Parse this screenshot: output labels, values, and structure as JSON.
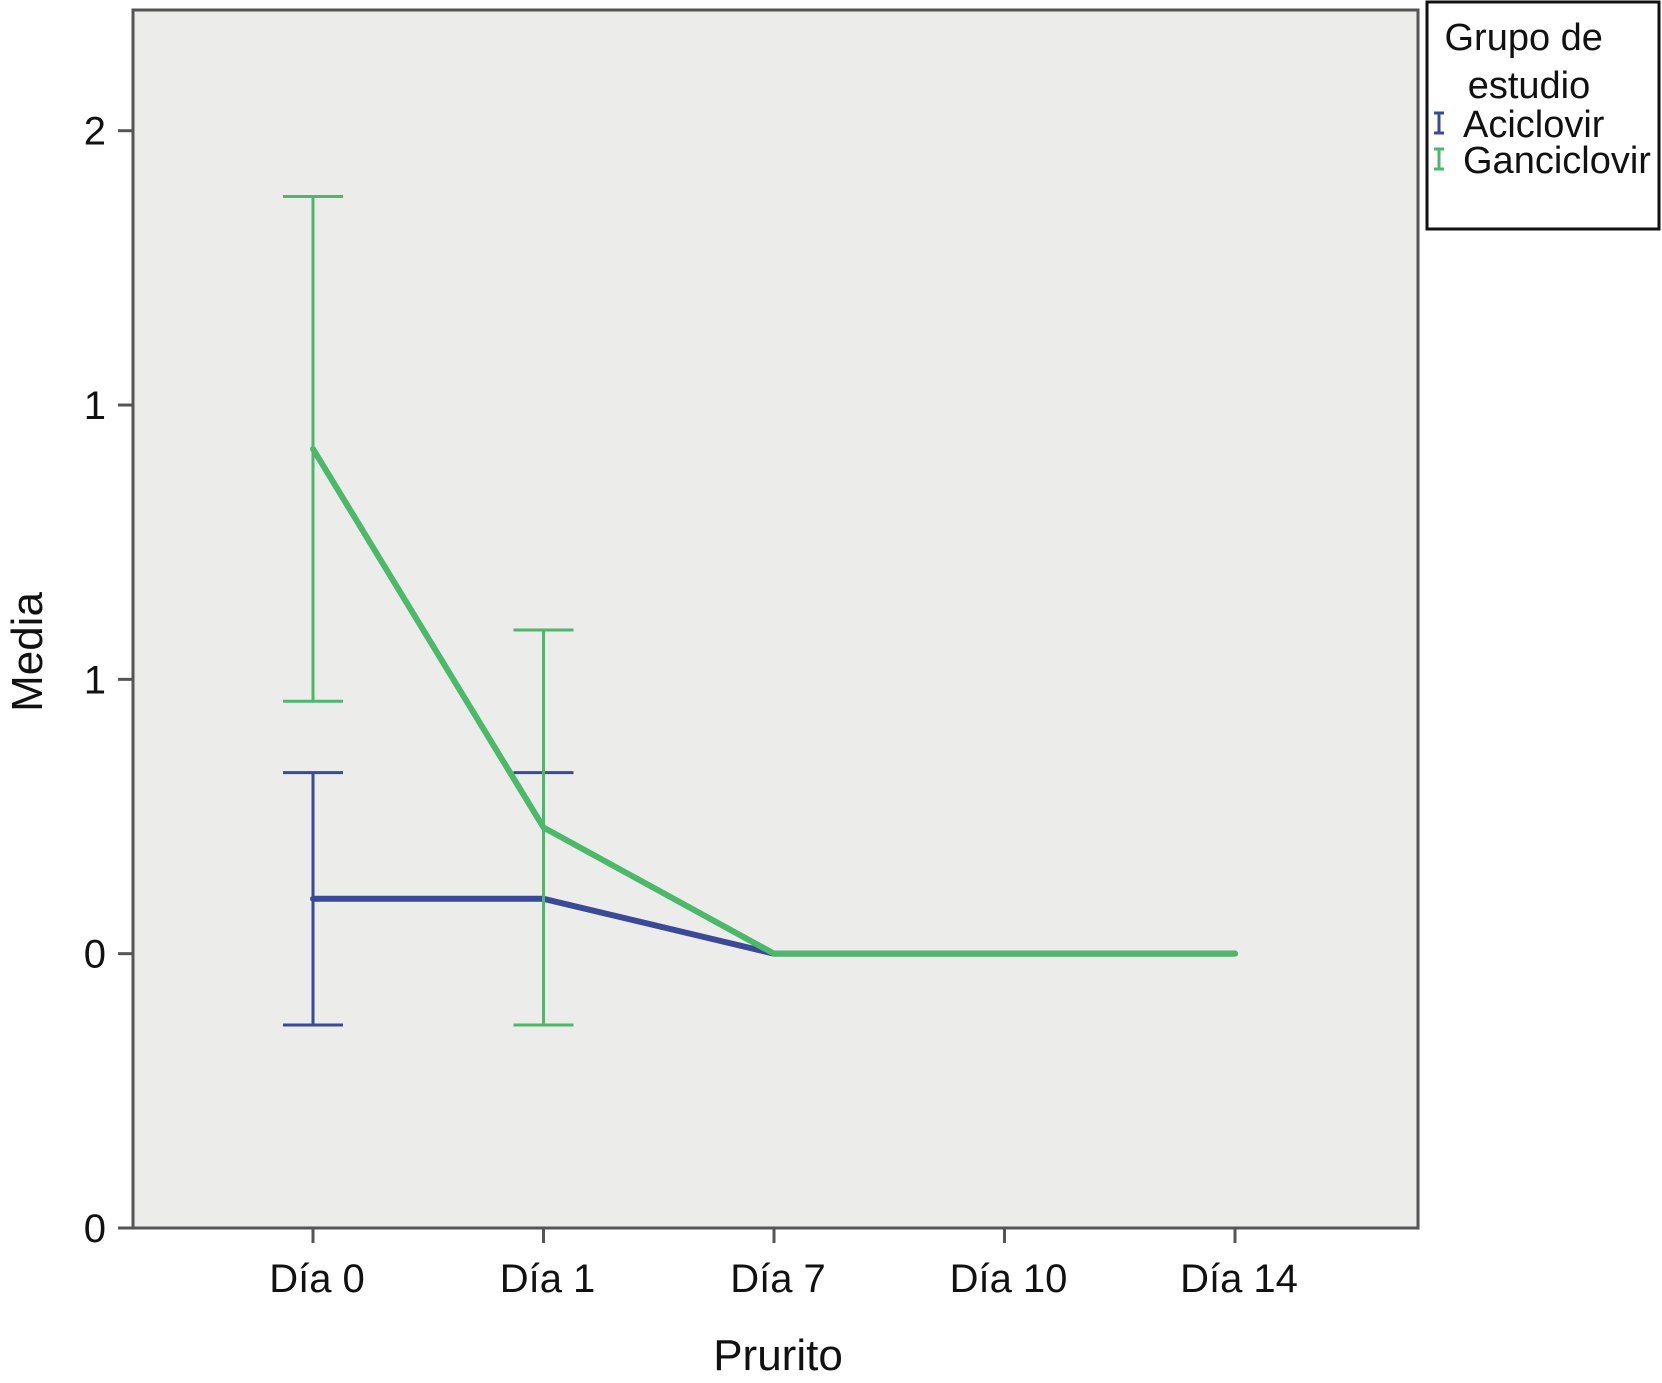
{
  "chart_data": {
    "type": "line",
    "error_bars": true,
    "xlabel": "Prurito",
    "ylabel": "Media",
    "categories": [
      "Día 0",
      "Día 1",
      "Día 7",
      "Día 10",
      "Día 14"
    ],
    "ylim": [
      -0.5,
      1.72
    ],
    "y_ticks": [
      -0.5,
      0,
      0.5,
      1,
      1.5
    ],
    "y_tick_labels": [
      "0",
      "0",
      "1",
      "1",
      "2"
    ],
    "grid": false,
    "legend": {
      "title": "Grupo de estudio",
      "placement": "outside-top-right"
    },
    "series": [
      {
        "name": "Aciclovir",
        "color": "#3a4a96",
        "values": [
          0.1,
          0.1,
          0.0,
          0.0,
          0.0
        ],
        "error_low": [
          -0.13,
          -0.13,
          0.0,
          0.0,
          0.0
        ],
        "error_high": [
          0.33,
          0.33,
          0.0,
          0.0,
          0.0
        ]
      },
      {
        "name": "Ganciclovir",
        "color": "#4cb86a",
        "values": [
          0.92,
          0.23,
          0.0,
          0.0,
          0.0
        ],
        "error_low": [
          0.46,
          -0.13,
          0.0,
          0.0,
          0.0
        ],
        "error_high": [
          1.38,
          0.59,
          0.0,
          0.0,
          0.0
        ]
      }
    ],
    "plot_background": "#ececea"
  }
}
